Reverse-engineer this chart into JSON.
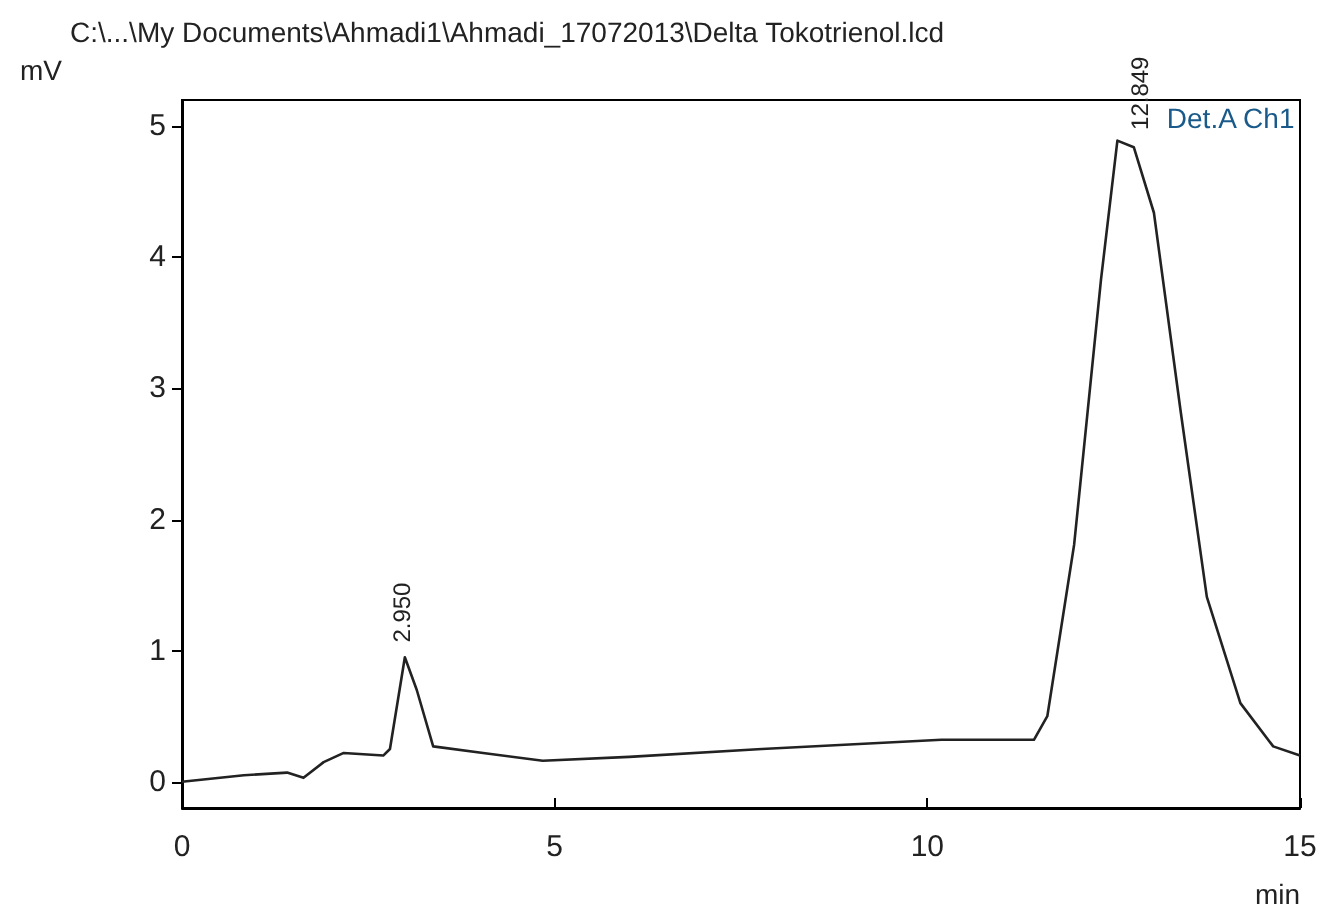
{
  "chart_data": {
    "type": "line",
    "title": "C:\\...\\My Documents\\Ahmadi1\\Ahmadi_17072013\\Delta Tokotrienol.lcd",
    "xlabel": "min",
    "ylabel": "mV",
    "x": [
      0,
      0.83,
      1.41,
      1.63,
      1.9,
      2.17,
      2.7,
      2.79,
      2.99,
      3.15,
      3.37,
      4.04,
      4.84,
      6.0,
      7.78,
      10.19,
      11.43,
      11.61,
      11.97,
      12.33,
      12.55,
      12.77,
      13.04,
      13.4,
      13.75,
      14.2,
      14.64,
      15
    ],
    "series": [
      {
        "color": "#222222",
        "values": [
          0,
          0.05,
          0.07,
          0.03,
          0.15,
          0.22,
          0.2,
          0.25,
          0.95,
          0.7,
          0.27,
          0.22,
          0.16,
          0.19,
          0.25,
          0.32,
          0.32,
          0.5,
          1.81,
          3.83,
          4.89,
          4.84,
          4.34,
          2.82,
          1.41,
          0.6,
          0.27,
          0.2
        ]
      }
    ],
    "xlim": [
      0,
      15
    ],
    "xticks": [
      0,
      5,
      10,
      15
    ],
    "ylim": [
      -0.2,
      5.2
    ],
    "yticks": [
      0,
      1,
      2,
      3,
      4,
      5
    ],
    "grid": false,
    "marker": "none",
    "line_style": "solid",
    "annotations": [
      {
        "text": "2.950",
        "x": 2.95,
        "y": 0.97
      },
      {
        "text": "12.849",
        "x": 12.849,
        "y": 4.88
      },
      "Det.A Ch1"
    ]
  }
}
